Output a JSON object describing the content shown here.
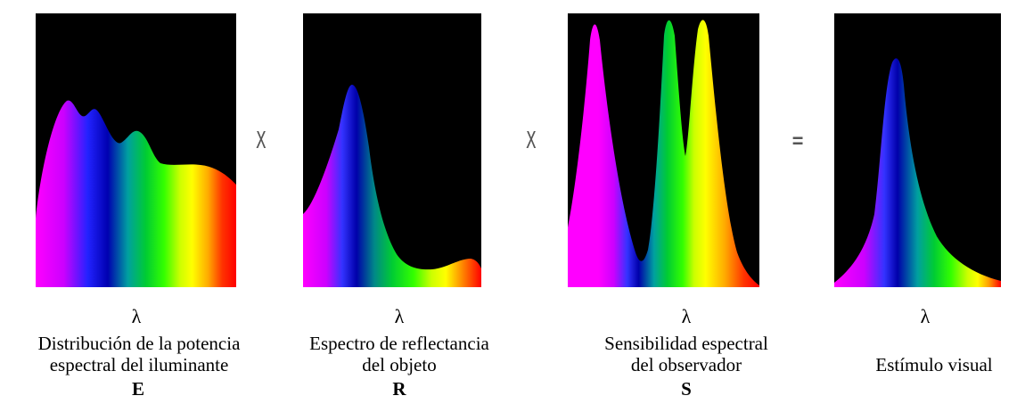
{
  "spectrum_colors": [
    "#ff00ff",
    "#cc00ff",
    "#3333ff",
    "#0000cc",
    "#00b3b3",
    "#00cc33",
    "#33ff00",
    "#ccff00",
    "#ffff00",
    "#ff9900",
    "#ff3300",
    "#ff0000"
  ],
  "operators": {
    "times_1": "X",
    "times_2": "X",
    "equals": "="
  },
  "panels": [
    {
      "id": "E",
      "lambda": "λ",
      "caption_line1": "Distribución de la potencia",
      "caption_line2": "espectral del iluminante",
      "symbol": "E"
    },
    {
      "id": "R",
      "lambda": "λ",
      "caption_line1": "Espectro de reflectancia",
      "caption_line2": "del objeto",
      "symbol": "R"
    },
    {
      "id": "S",
      "lambda": "λ",
      "caption_line1": "Sensibilidad espectral",
      "caption_line2": "del observador",
      "symbol": "S"
    },
    {
      "id": "V",
      "lambda": "λ",
      "caption_line1": "",
      "caption_line2": "Estímulo visual",
      "symbol": ""
    }
  ]
}
